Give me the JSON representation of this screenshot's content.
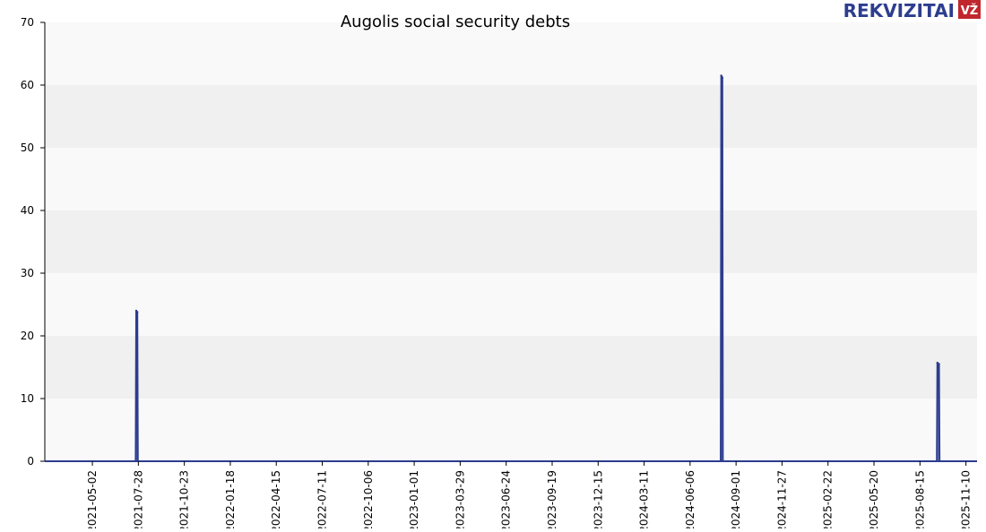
{
  "brand": {
    "name": "REKVIZITAI",
    "badge": "VŽ",
    "brand_color": "#2d3d8e",
    "badge_color": "#c0272d"
  },
  "chart_data": {
    "type": "area",
    "title": "Augolis social security debts",
    "xlabel": "",
    "ylabel": "",
    "ylim": [
      0,
      70
    ],
    "yticks": [
      0,
      10,
      20,
      30,
      40,
      50,
      60,
      70
    ],
    "xlim": [
      "2021-02-01",
      "2025-12-01"
    ],
    "xticks": [
      "2021-05-02",
      "2021-07-28",
      "2021-10-23",
      "2022-01-18",
      "2022-04-15",
      "2022-07-11",
      "2022-10-06",
      "2023-01-01",
      "2023-03-29",
      "2023-06-24",
      "2023-09-19",
      "2023-12-15",
      "2024-03-11",
      "2024-06-06",
      "2024-09-01",
      "2024-11-27",
      "2025-02-22",
      "2025-05-20",
      "2025-08-15",
      "2025-11-10"
    ],
    "grid": "horizontal bands",
    "series": [
      {
        "color": "#2d3d8e",
        "points": [
          {
            "x": "2021-02-01",
            "y": 0
          },
          {
            "x": "2021-07-23",
            "y": 0
          },
          {
            "x": "2021-07-24",
            "y": 24
          },
          {
            "x": "2021-07-26",
            "y": 23.8
          },
          {
            "x": "2021-07-27",
            "y": 0
          },
          {
            "x": "2024-08-03",
            "y": 0
          },
          {
            "x": "2024-08-04",
            "y": 61.5
          },
          {
            "x": "2024-08-06",
            "y": 61.2
          },
          {
            "x": "2024-08-07",
            "y": 0
          },
          {
            "x": "2025-09-16",
            "y": 0
          },
          {
            "x": "2025-09-17",
            "y": 15.7
          },
          {
            "x": "2025-09-20",
            "y": 15.5
          },
          {
            "x": "2025-09-21",
            "y": 0
          },
          {
            "x": "2025-12-01",
            "y": 0
          }
        ]
      }
    ],
    "colors": {
      "band_dark": "#f0f0f0",
      "band_light": "#f9f9f9",
      "line": "#2d3d8e",
      "fill": "#5a6fbf"
    }
  }
}
